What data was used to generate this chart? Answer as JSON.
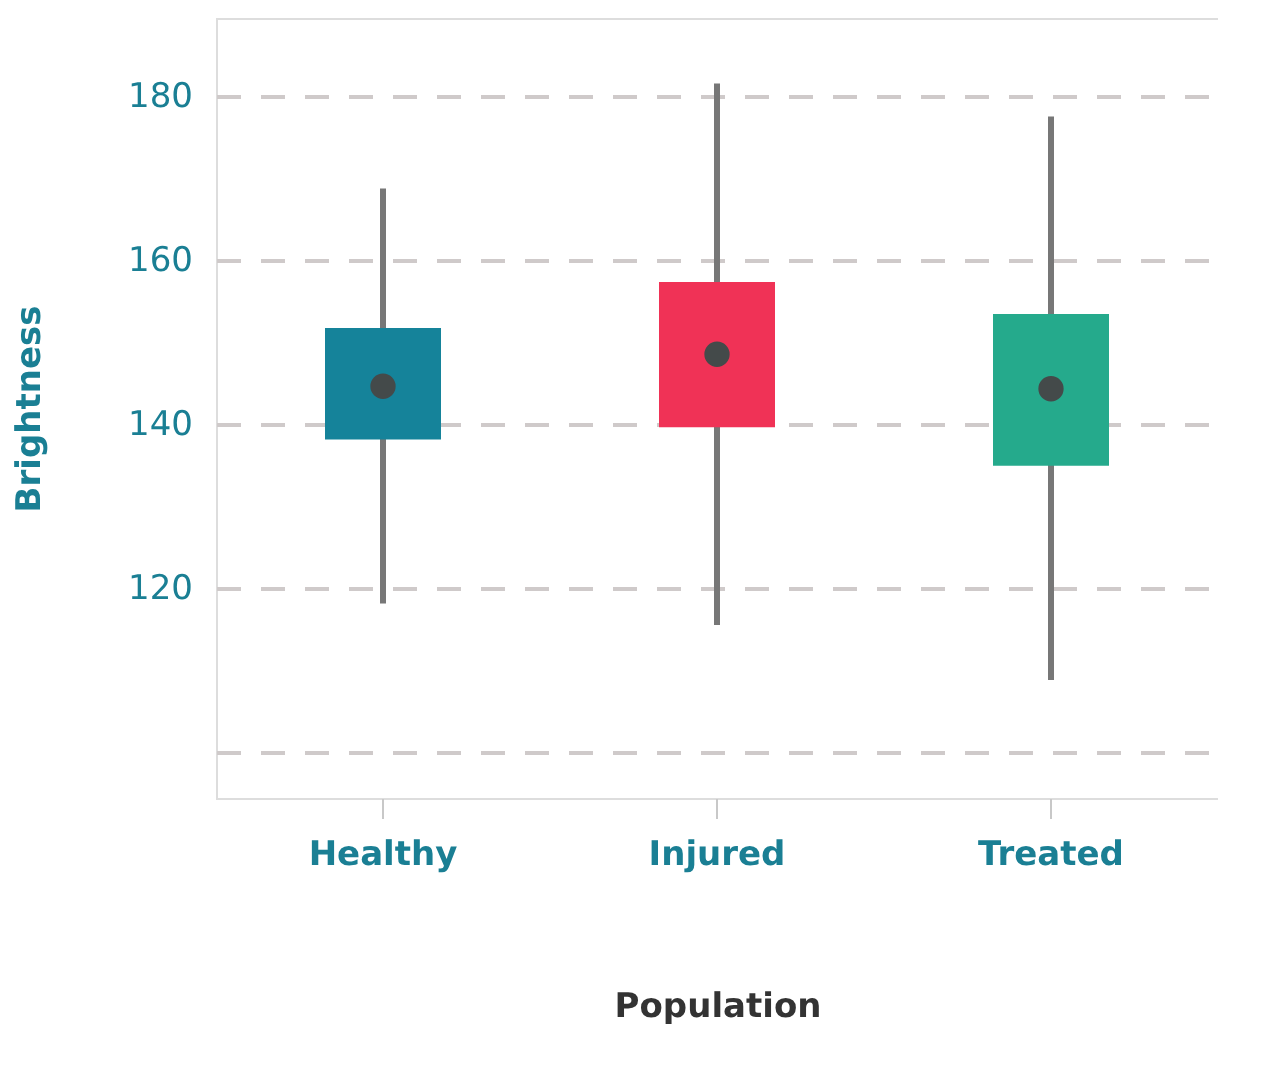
{
  "chart_data": {
    "type": "box",
    "categories": [
      "Healthy",
      "Injured",
      "Treated"
    ],
    "boxes": [
      {
        "low": 118.1,
        "q1": 138.1,
        "median": 144.6,
        "q3": 151.7,
        "high": 168.7
      },
      {
        "low": 115.5,
        "q1": 139.6,
        "median": 148.5,
        "q3": 157.3,
        "high": 181.5
      },
      {
        "low": 108.8,
        "q1": 134.9,
        "median": 144.3,
        "q3": 153.4,
        "high": 177.5
      }
    ],
    "colors": [
      "#15839a",
      "#f03256",
      "#25aa8c"
    ],
    "xlabel": "Population",
    "ylabel": "Brightness",
    "ylim": [
      94.4,
      189.5
    ],
    "yticks": [
      {
        "value": 100,
        "label": null
      },
      120,
      140,
      160,
      180
    ],
    "grid": "y"
  }
}
